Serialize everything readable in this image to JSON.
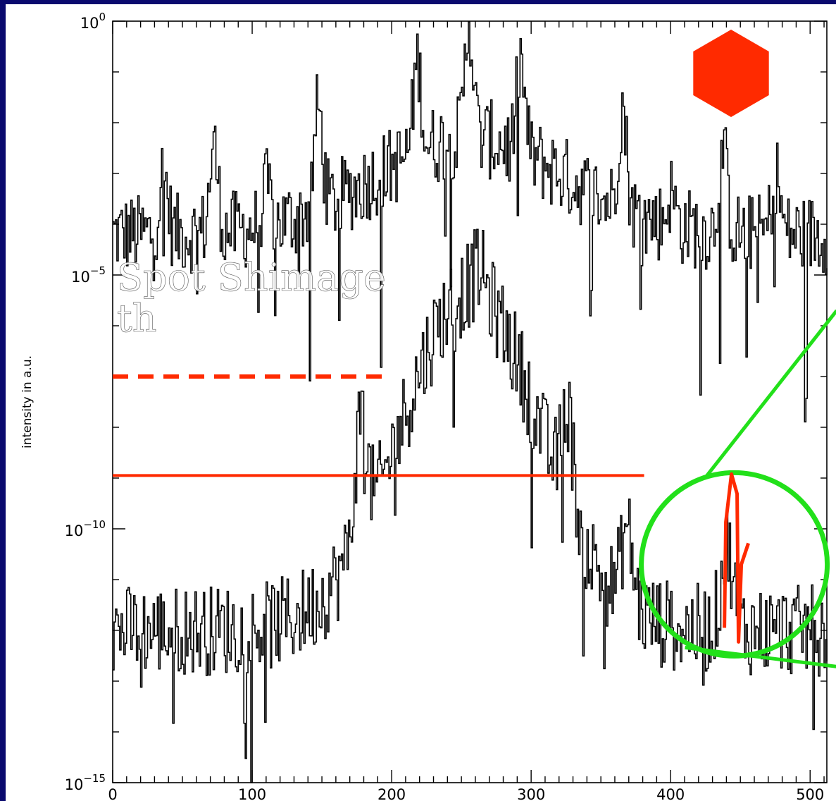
{
  "chart_data": {
    "type": "line",
    "title": "",
    "xlabel": "",
    "ylabel": "intensity in a.u.",
    "xlim": [
      0,
      512
    ],
    "ylim_log10": [
      -15,
      0
    ],
    "log_y": true,
    "x_ticks": [
      "0",
      "100",
      "200",
      "300",
      "400",
      "500"
    ],
    "y_ticks": [
      {
        "base": "10",
        "exp": "0",
        "value": 0
      },
      {
        "base": "10",
        "exp": "−5",
        "value": -5
      },
      {
        "base": "10",
        "exp": "−10",
        "value": -10
      },
      {
        "base": "10",
        "exp": "−15",
        "value": -15
      }
    ],
    "series": [
      {
        "color": "#000000",
        "peaks_x": [
          36,
          72,
          110,
          147,
          183,
          218,
          255,
          292,
          328,
          365,
          400,
          437,
          475
        ],
        "peak_log10": [
          -3.0,
          -2.5,
          -3.3,
          -1.7,
          -3.5,
          -0.8,
          0.0,
          -0.8,
          -3.5,
          -1.7,
          -3.4,
          -2.5,
          -3.0
        ],
        "baseline_log10": -4.2,
        "envelope_log10_at_center": -2.3
      },
      {
        "color": "#000000",
        "peaks_x": [
          178,
          208,
          262,
          298,
          325,
          368,
          440
        ],
        "peak_log10": [
          -7.7,
          -9.0,
          -4.9,
          -7.9,
          -7.6,
          -10.0,
          -10.3
        ],
        "center_x": 256,
        "center_log10": -5.3,
        "baseline_log10": -12.0
      }
    ],
    "annotations": {
      "dashed_line_log10": -7.0,
      "dashed_line_x_range": [
        0,
        198
      ],
      "solid_line_log10": -8.95,
      "solid_line_x_range": [
        0,
        381
      ],
      "highlight_color": "#ff2a00",
      "zoom_color": "#22e01a",
      "zoom_center_x": 380,
      "zoom_center_log10": -10.7,
      "hexagon_color": "#ff2a00",
      "overlay_lines": [
        "Spot Shimage",
        "th"
      ]
    }
  }
}
